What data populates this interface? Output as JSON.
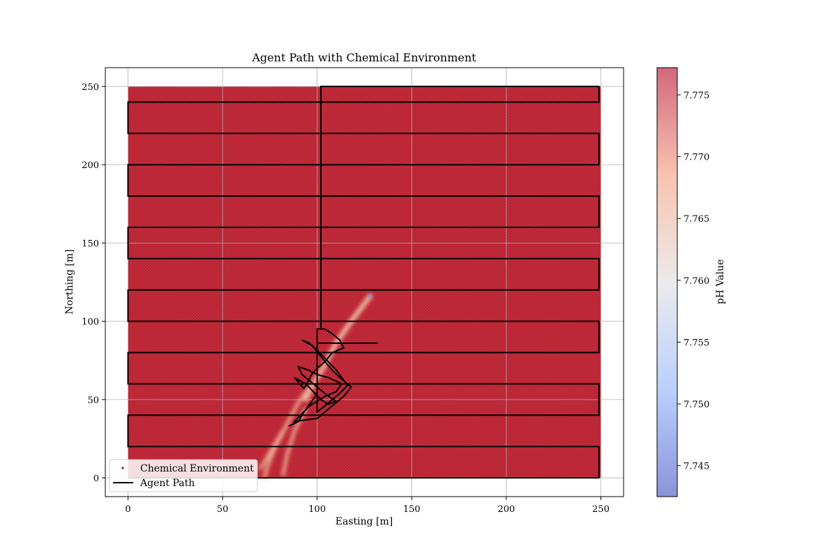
{
  "chart_data": {
    "type": "scatter",
    "title": "Agent Path with Chemical Environment",
    "xlabel": "Easting [m]",
    "ylabel": "Northing [m]",
    "xlim": [
      -12,
      262
    ],
    "ylim": [
      -12,
      262
    ],
    "xticks": [
      0,
      50,
      100,
      150,
      200,
      250
    ],
    "yticks": [
      0,
      50,
      100,
      150,
      200,
      250
    ],
    "grid": true,
    "legend": {
      "placement": "lower-left",
      "entries": [
        {
          "label": "Chemical Environment",
          "marker": "dot",
          "color": "#b40426"
        },
        {
          "label": "Agent Path",
          "marker": "line",
          "color": "#000000"
        }
      ]
    },
    "colorbar": {
      "label": "pH Value",
      "colormap": "coolwarm",
      "range": [
        7.7425,
        7.7772
      ],
      "ticks": [
        "7.745",
        "7.750",
        "7.755",
        "7.760",
        "7.765",
        "7.770",
        "7.775"
      ],
      "tick_values": [
        7.745,
        7.75,
        7.755,
        7.76,
        7.765,
        7.77,
        7.775
      ]
    },
    "environment": {
      "extent_x": [
        0,
        250
      ],
      "extent_y": [
        0,
        250
      ],
      "background_ph": 7.776,
      "plume_source": [
        128,
        116
      ],
      "plume_ph_min": 7.7425
    },
    "series": [
      {
        "name": "Agent Path",
        "kind": "lawnmower",
        "x": [
          102,
          102,
          249,
          249,
          0,
          0,
          249,
          249,
          0,
          0,
          249,
          249,
          0,
          0,
          249,
          249,
          0,
          0,
          249,
          249,
          0,
          0,
          249,
          249,
          0,
          0,
          249,
          249,
          0,
          0,
          249,
          249,
          0,
          0,
          249,
          249,
          0,
          0,
          249,
          249
        ],
        "y": [
          95,
          250,
          250,
          240,
          240,
          220,
          220,
          200,
          200,
          180,
          180,
          160,
          160,
          140,
          140,
          120,
          120,
          100,
          100,
          80,
          80,
          60,
          60,
          40,
          40,
          20,
          20,
          0,
          0,
          0,
          0,
          0,
          0,
          0,
          0,
          0,
          0,
          0,
          0,
          0
        ]
      },
      {
        "name": "Agent Path",
        "kind": "search",
        "x": [
          85,
          90,
          93,
          96,
          99,
          100,
          100,
          104,
          108,
          112,
          114,
          108,
          104,
          100,
          97,
          95,
          93,
          88,
          94,
          98,
          102,
          106,
          110,
          105,
          100,
          96,
          92,
          90,
          95,
          100,
          106,
          113,
          110,
          104,
          100,
          96,
          88,
          100,
          104,
          109,
          114,
          118,
          112,
          107,
          103,
          99,
          96,
          92,
          98,
          102,
          106,
          110,
          113,
          116,
          112,
          108,
          104,
          100,
          100,
          132
        ],
        "y": [
          33,
          36,
          42,
          47,
          52,
          55,
          95,
          95,
          92,
          88,
          83,
          80,
          74,
          70,
          66,
          61,
          57,
          64,
          60,
          55,
          50,
          47,
          49,
          53,
          58,
          62,
          66,
          71,
          69,
          66,
          64,
          60,
          55,
          52,
          49,
          46,
          36,
          38,
          42,
          47,
          52,
          58,
          64,
          70,
          76,
          82,
          86,
          88,
          84,
          79,
          74,
          69,
          64,
          59,
          54,
          50,
          46,
          42,
          86,
          86
        ]
      }
    ]
  }
}
